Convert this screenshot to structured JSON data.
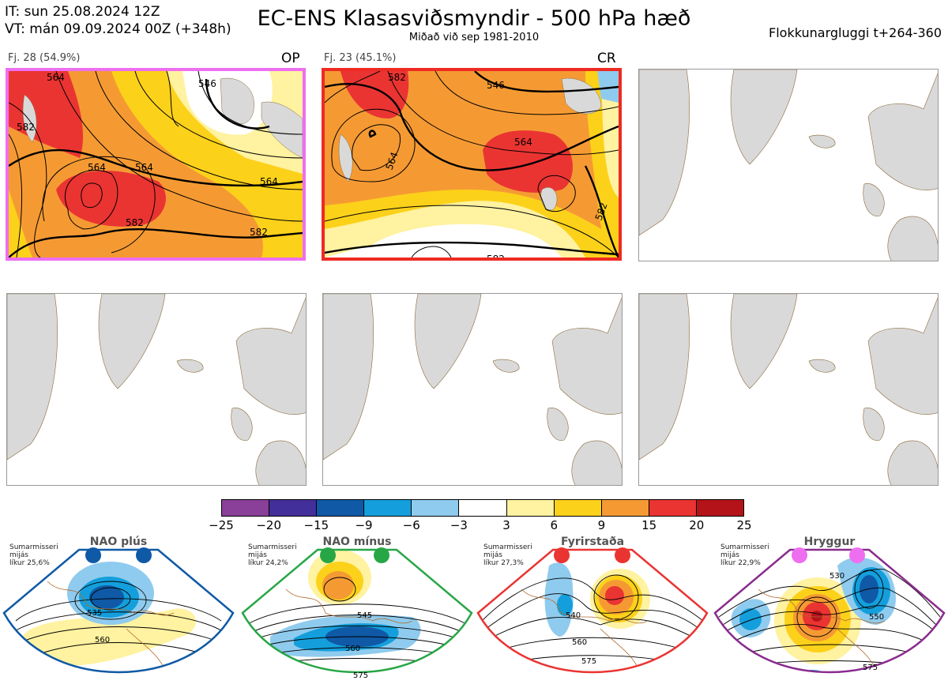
{
  "header": {
    "it_line": "IT: sun 25.08.2024 12Z",
    "vt_line": "VT: mán 09.09.2024 00Z  (+348h)",
    "title": "EC-ENS Klasasviðsmyndir - 500 hPa hæð",
    "subtitle": "Miðað við sep 1981-2010",
    "window": "Flokkunargluggi t+264-360"
  },
  "panels": [
    {
      "label": "Fj. 28 (54.9%)",
      "tag": "OP",
      "contours": [
        "546",
        "564",
        "564",
        "564",
        "582",
        "582",
        "582",
        "564"
      ],
      "border_color": "#ee6ef0"
    },
    {
      "label": "Fj. 23 (45.1%)",
      "tag": "CR",
      "contours": [
        "546",
        "564",
        "564",
        "582",
        "582",
        "582"
      ],
      "border_color": "#ee2a22"
    }
  ],
  "colorbar": {
    "colors": [
      "#8a3f99",
      "#432f99",
      "#0f59a6",
      "#149fdc",
      "#8fcbee",
      "#ffffff",
      "#fff2a0",
      "#fcd11a",
      "#f59a33",
      "#ea3432",
      "#b4131a"
    ],
    "labels": [
      "−25",
      "−20",
      "−15",
      "−9",
      "−6",
      "−3",
      "3",
      "6",
      "9",
      "15",
      "20",
      "25"
    ]
  },
  "regimes": [
    {
      "name": "NAO plús",
      "info": [
        "Sumarmisseri",
        "mijás",
        "líkur 25,6%"
      ],
      "color": "#0f59a6",
      "dot_color": "#0f59a6",
      "contours": [
        "535",
        "560"
      ]
    },
    {
      "name": "NAO mínus",
      "info": [
        "Sumarmisseri",
        "mijás",
        "líkur 24,2%"
      ],
      "color": "#27a646",
      "dot_color": "#27a646",
      "contours": [
        "545",
        "560",
        "575"
      ]
    },
    {
      "name": "Fyrirstaða",
      "info": [
        "Sumarmisseri",
        "mijás",
        "líkur 27,3%"
      ],
      "color": "#ea3432",
      "dot_color": "#ea3432",
      "contours": [
        "540",
        "560",
        "575"
      ]
    },
    {
      "name": "Hryggur",
      "info": [
        "Sumarmisseri",
        "mijás",
        "líkur 22,9%"
      ],
      "color": "#8a2b8e",
      "dot_color": "#ee6ef0",
      "contours": [
        "530",
        "550",
        "575"
      ]
    }
  ]
}
